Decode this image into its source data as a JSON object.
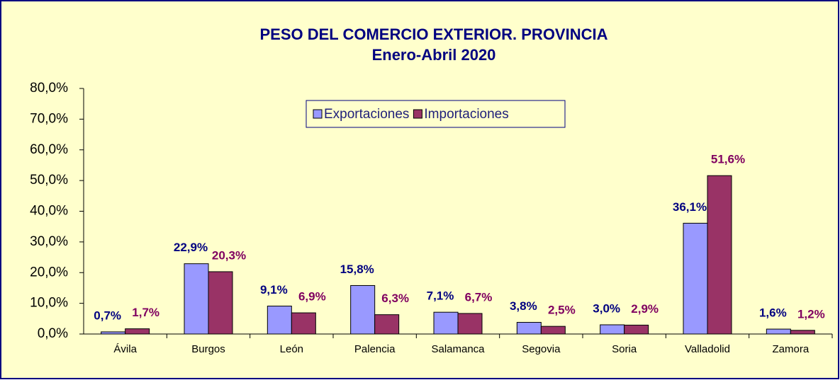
{
  "chart_data": {
    "type": "bar",
    "title": "PESO DEL COMERCIO EXTERIOR. PROVINCIA",
    "subtitle": "Enero-Abril 2020",
    "categories": [
      "Ávila",
      "Burgos",
      "León",
      "Palencia",
      "Salamanca",
      "Segovia",
      "Soria",
      "Valladolid",
      "Zamora"
    ],
    "series": [
      {
        "name": "Exportaciones",
        "color": "#9999ff",
        "label_color": "#000080",
        "values": [
          0.7,
          22.9,
          9.1,
          15.8,
          7.1,
          3.8,
          3.0,
          36.1,
          1.6
        ],
        "value_labels": [
          "0,7%",
          "22,9%",
          "9,1%",
          "15,8%",
          "7,1%",
          "3,8%",
          "3,0%",
          "36,1%",
          "1,6%"
        ]
      },
      {
        "name": "Importaciones",
        "color": "#993366",
        "label_color": "#800060",
        "values": [
          1.7,
          20.3,
          6.9,
          6.3,
          6.7,
          2.5,
          2.9,
          51.6,
          1.2
        ],
        "value_labels": [
          "1,7%",
          "20,3%",
          "6,9%",
          "6,3%",
          "6,7%",
          "2,5%",
          "2,9%",
          "51,6%",
          "1,2%"
        ]
      }
    ],
    "ylim": [
      0,
      80
    ],
    "yticks": [
      {
        "value": 0,
        "label": "0,0%"
      },
      {
        "value": 10,
        "label": "10,0%"
      },
      {
        "value": 20,
        "label": "20,0%"
      },
      {
        "value": 30,
        "label": "30,0%"
      },
      {
        "value": 40,
        "label": "40,0%"
      },
      {
        "value": 50,
        "label": "50,0%"
      },
      {
        "value": 60,
        "label": "60,0%"
      },
      {
        "value": 70,
        "label": "70,0%"
      },
      {
        "value": 80,
        "label": "80,0%"
      }
    ],
    "grid": false,
    "legend": "top"
  }
}
